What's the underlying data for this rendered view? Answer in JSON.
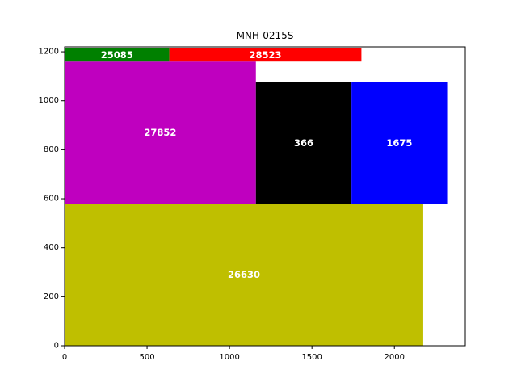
{
  "chart_data": {
    "type": "treemap",
    "title": "MNH-0215S",
    "xlabel": "",
    "ylabel": "",
    "xlim": [
      0,
      2430
    ],
    "ylim": [
      0,
      1220
    ],
    "x_ticks": [
      0,
      500,
      1000,
      1500,
      2000
    ],
    "y_ticks": [
      0,
      200,
      400,
      600,
      800,
      1000,
      1200
    ],
    "grid": false,
    "legend": "none",
    "rectangles": [
      {
        "label": "26630",
        "x0": 0,
        "y0": 0,
        "x1": 2175,
        "y1": 580,
        "color": "#bfbf00"
      },
      {
        "label": "27852",
        "x0": 0,
        "y0": 580,
        "x1": 1160,
        "y1": 1160,
        "color": "#bf00bf"
      },
      {
        "label": "366",
        "x0": 1160,
        "y0": 580,
        "x1": 1740,
        "y1": 1075,
        "color": "#000000"
      },
      {
        "label": "1675",
        "x0": 1740,
        "y0": 580,
        "x1": 2320,
        "y1": 1075,
        "color": "#0000ff"
      },
      {
        "label": "25085",
        "x0": 0,
        "y0": 1160,
        "x1": 635,
        "y1": 1215,
        "color": "#008000"
      },
      {
        "label": "28523",
        "x0": 635,
        "y0": 1160,
        "x1": 1800,
        "y1": 1215,
        "color": "#ff0000"
      }
    ]
  }
}
